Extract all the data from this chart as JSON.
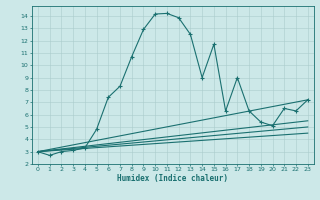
{
  "xlabel": "Humidex (Indice chaleur)",
  "background_color": "#cce8e8",
  "grid_color": "#aacccc",
  "line_color": "#1a7070",
  "xlim": [
    -0.5,
    23.5
  ],
  "ylim": [
    2.0,
    14.8
  ],
  "xticks": [
    0,
    1,
    2,
    3,
    4,
    5,
    6,
    7,
    8,
    9,
    10,
    11,
    12,
    13,
    14,
    15,
    16,
    17,
    18,
    19,
    20,
    21,
    22,
    23
  ],
  "yticks": [
    2,
    3,
    4,
    5,
    6,
    7,
    8,
    9,
    10,
    11,
    12,
    13,
    14
  ],
  "main_x": [
    0,
    1,
    2,
    3,
    4,
    5,
    6,
    7,
    8,
    9,
    10,
    11,
    12,
    13,
    14,
    15,
    16,
    17,
    18,
    19,
    20,
    21,
    22,
    23
  ],
  "main_y": [
    3.0,
    2.7,
    3.0,
    3.1,
    3.3,
    4.8,
    7.4,
    8.3,
    10.7,
    12.9,
    14.15,
    14.2,
    13.85,
    12.5,
    9.0,
    11.7,
    6.3,
    9.0,
    6.3,
    5.4,
    5.1,
    6.5,
    6.3,
    7.2
  ],
  "line1_x": [
    0,
    23
  ],
  "line1_y": [
    3.0,
    7.2
  ],
  "line2_x": [
    0,
    23
  ],
  "line2_y": [
    3.0,
    5.5
  ],
  "line3_x": [
    0,
    23
  ],
  "line3_y": [
    3.0,
    5.0
  ],
  "line4_x": [
    0,
    23
  ],
  "line4_y": [
    3.0,
    4.5
  ]
}
